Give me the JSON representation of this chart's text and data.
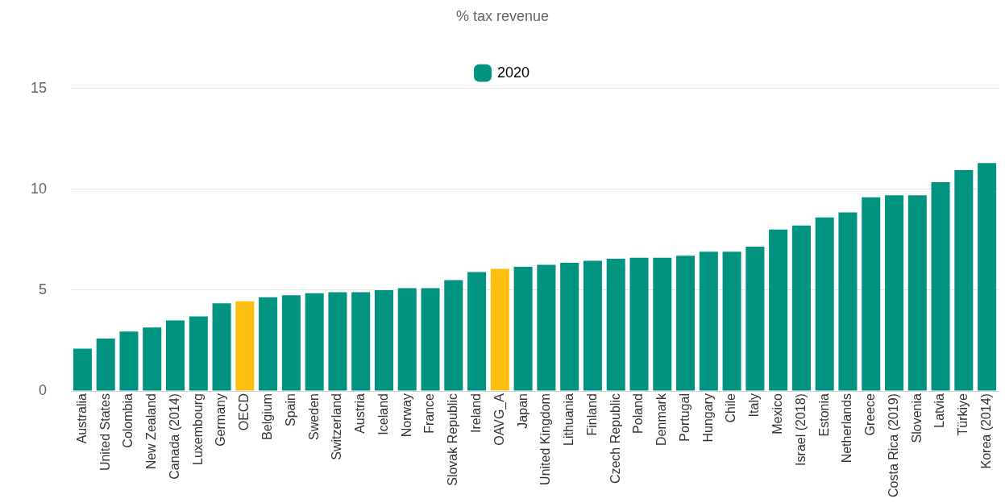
{
  "chart_data": {
    "type": "bar",
    "subtitle": "% tax revenue",
    "categories": [
      "Australia",
      "United States",
      "Colombia",
      "New Zealand",
      "Canada (2014)",
      "Luxembourg",
      "Germany",
      "OECD",
      "Belgium",
      "Spain",
      "Sweden",
      "Switzerland",
      "Austria",
      "Iceland",
      "Norway",
      "France",
      "Slovak Republic",
      "Ireland",
      "OAVG_A",
      "Japan",
      "United Kingdom",
      "Lithuania",
      "Finland",
      "Czech Republic",
      "Poland",
      "Denmark",
      "Portugal",
      "Hungary",
      "Chile",
      "Italy",
      "Mexico",
      "Israel (2018)",
      "Estonia",
      "Netherlands",
      "Greece",
      "Costa Rica (2019)",
      "Slovenia",
      "Latvia",
      "Türkiye",
      "Korea (2014)"
    ],
    "series": [
      {
        "name": "2020",
        "color": "#009380",
        "colors": [
          "#009380",
          "#009380",
          "#009380",
          "#009380",
          "#009380",
          "#009380",
          "#009380",
          "#fdc010",
          "#009380",
          "#009380",
          "#009380",
          "#009380",
          "#009380",
          "#009380",
          "#009380",
          "#009380",
          "#009380",
          "#009380",
          "#fdc010",
          "#009380",
          "#009380",
          "#009380",
          "#009380",
          "#009380",
          "#009380",
          "#009380",
          "#009380",
          "#009380",
          "#009380",
          "#009380",
          "#009380",
          "#009380",
          "#009380",
          "#009380",
          "#009380",
          "#009380",
          "#009380",
          "#009380",
          "#009380",
          "#009380"
        ],
        "values": [
          2.1,
          2.6,
          2.95,
          3.15,
          3.5,
          3.7,
          4.35,
          4.45,
          4.65,
          4.75,
          4.85,
          4.9,
          4.9,
          5.0,
          5.1,
          5.1,
          5.5,
          5.9,
          6.05,
          6.15,
          6.25,
          6.35,
          6.45,
          6.55,
          6.6,
          6.6,
          6.7,
          6.9,
          6.9,
          7.15,
          8.0,
          8.2,
          8.6,
          8.85,
          9.6,
          9.7,
          9.7,
          10.35,
          10.95,
          11.3
        ]
      }
    ],
    "ylim": [
      0,
      15
    ],
    "yticks": [
      0,
      5,
      10,
      15
    ],
    "grid": "y",
    "legend": "top"
  }
}
